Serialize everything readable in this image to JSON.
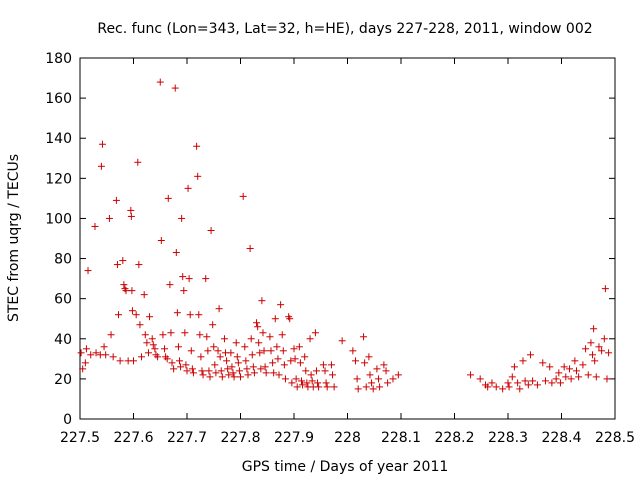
{
  "chart_data": {
    "type": "scatter",
    "title": "Rec. func (Lon=343, Lat=32, h=HE), days 227-228, 2011, window 002",
    "xlabel": "GPS time / Days of year 2011",
    "ylabel": "STEC from uqrg / TECUs",
    "xlim": [
      227.5,
      228.5
    ],
    "ylim": [
      0,
      180
    ],
    "xticks": [
      "227.5",
      "227.6",
      "227.7",
      "227.8",
      "227.9",
      "228",
      "228.1",
      "228.2",
      "228.3",
      "228.4",
      "228.5"
    ],
    "yticks": [
      "0",
      "20",
      "40",
      "60",
      "80",
      "100",
      "120",
      "140",
      "160",
      "180"
    ],
    "marker_color": "#cc0000",
    "grid": false,
    "series": [
      {
        "name": "STEC",
        "points": [
          [
            227.502,
            33
          ],
          [
            227.505,
            25
          ],
          [
            227.51,
            28
          ],
          [
            227.512,
            35
          ],
          [
            227.515,
            74
          ],
          [
            227.52,
            32
          ],
          [
            227.528,
            96
          ],
          [
            227.53,
            33
          ],
          [
            227.538,
            32
          ],
          [
            227.54,
            126
          ],
          [
            227.542,
            137
          ],
          [
            227.545,
            36
          ],
          [
            227.548,
            32
          ],
          [
            227.555,
            100
          ],
          [
            227.558,
            42
          ],
          [
            227.562,
            31
          ],
          [
            227.568,
            109
          ],
          [
            227.57,
            77
          ],
          [
            227.572,
            52
          ],
          [
            227.575,
            29
          ],
          [
            227.58,
            79
          ],
          [
            227.582,
            67
          ],
          [
            227.584,
            65
          ],
          [
            227.586,
            64
          ],
          [
            227.59,
            29
          ],
          [
            227.595,
            104
          ],
          [
            227.596,
            101
          ],
          [
            227.597,
            64
          ],
          [
            227.598,
            54
          ],
          [
            227.6,
            29
          ],
          [
            227.605,
            52
          ],
          [
            227.608,
            128
          ],
          [
            227.61,
            77
          ],
          [
            227.612,
            47
          ],
          [
            227.615,
            31
          ],
          [
            227.62,
            62
          ],
          [
            227.622,
            42
          ],
          [
            227.625,
            38
          ],
          [
            227.628,
            33
          ],
          [
            227.63,
            51
          ],
          [
            227.635,
            40
          ],
          [
            227.637,
            37
          ],
          [
            227.64,
            35
          ],
          [
            227.642,
            32
          ],
          [
            227.645,
            31
          ],
          [
            227.65,
            168
          ],
          [
            227.652,
            89
          ],
          [
            227.655,
            42
          ],
          [
            227.658,
            35
          ],
          [
            227.66,
            31
          ],
          [
            227.663,
            30
          ],
          [
            227.665,
            110
          ],
          [
            227.668,
            67
          ],
          [
            227.67,
            43
          ],
          [
            227.672,
            28
          ],
          [
            227.675,
            25
          ],
          [
            227.678,
            165
          ],
          [
            227.68,
            83
          ],
          [
            227.682,
            53
          ],
          [
            227.684,
            36
          ],
          [
            227.686,
            29
          ],
          [
            227.688,
            26
          ],
          [
            227.69,
            100
          ],
          [
            227.692,
            71
          ],
          [
            227.694,
            64
          ],
          [
            227.696,
            43
          ],
          [
            227.698,
            27
          ],
          [
            227.7,
            24
          ],
          [
            227.702,
            115
          ],
          [
            227.704,
            70
          ],
          [
            227.706,
            52
          ],
          [
            227.708,
            34
          ],
          [
            227.71,
            25
          ],
          [
            227.712,
            23
          ],
          [
            227.718,
            136
          ],
          [
            227.72,
            121
          ],
          [
            227.722,
            52
          ],
          [
            227.724,
            42
          ],
          [
            227.726,
            31
          ],
          [
            227.728,
            24
          ],
          [
            227.73,
            22
          ],
          [
            227.735,
            70
          ],
          [
            227.737,
            41
          ],
          [
            227.739,
            34
          ],
          [
            227.741,
            24
          ],
          [
            227.743,
            21
          ],
          [
            227.745,
            94
          ],
          [
            227.748,
            47
          ],
          [
            227.75,
            36
          ],
          [
            227.752,
            27
          ],
          [
            227.754,
            23
          ],
          [
            227.758,
            34
          ],
          [
            227.76,
            55
          ],
          [
            227.762,
            31
          ],
          [
            227.764,
            24
          ],
          [
            227.766,
            21
          ],
          [
            227.77,
            40
          ],
          [
            227.772,
            33
          ],
          [
            227.774,
            29
          ],
          [
            227.776,
            25
          ],
          [
            227.778,
            22
          ],
          [
            227.782,
            33
          ],
          [
            227.784,
            26
          ],
          [
            227.786,
            23
          ],
          [
            227.788,
            21
          ],
          [
            227.792,
            38
          ],
          [
            227.794,
            31
          ],
          [
            227.796,
            28
          ],
          [
            227.798,
            24
          ],
          [
            227.8,
            21
          ],
          [
            227.805,
            111
          ],
          [
            227.808,
            36
          ],
          [
            227.81,
            29
          ],
          [
            227.812,
            25
          ],
          [
            227.814,
            22
          ],
          [
            227.818,
            85
          ],
          [
            227.82,
            40
          ],
          [
            227.822,
            32
          ],
          [
            227.824,
            26
          ],
          [
            227.826,
            23
          ],
          [
            227.83,
            48
          ],
          [
            227.832,
            46
          ],
          [
            227.834,
            38
          ],
          [
            227.836,
            33
          ],
          [
            227.838,
            25
          ],
          [
            227.84,
            59
          ],
          [
            227.842,
            43
          ],
          [
            227.844,
            34
          ],
          [
            227.846,
            26
          ],
          [
            227.848,
            23
          ],
          [
            227.855,
            41
          ],
          [
            227.857,
            34
          ],
          [
            227.86,
            28
          ],
          [
            227.862,
            23
          ],
          [
            227.865,
            50
          ],
          [
            227.868,
            36
          ],
          [
            227.87,
            30
          ],
          [
            227.872,
            22
          ],
          [
            227.875,
            57
          ],
          [
            227.878,
            42
          ],
          [
            227.88,
            34
          ],
          [
            227.882,
            27
          ],
          [
            227.884,
            20
          ],
          [
            227.89,
            51
          ],
          [
            227.892,
            50
          ],
          [
            227.894,
            29
          ],
          [
            227.896,
            18
          ],
          [
            227.9,
            35
          ],
          [
            227.902,
            30
          ],
          [
            227.904,
            20
          ],
          [
            227.906,
            16
          ],
          [
            227.91,
            36
          ],
          [
            227.912,
            28
          ],
          [
            227.914,
            19
          ],
          [
            227.916,
            17
          ],
          [
            227.92,
            31
          ],
          [
            227.922,
            24
          ],
          [
            227.924,
            18
          ],
          [
            227.926,
            16
          ],
          [
            227.93,
            40
          ],
          [
            227.932,
            22
          ],
          [
            227.934,
            19
          ],
          [
            227.936,
            16
          ],
          [
            227.94,
            43
          ],
          [
            227.942,
            24
          ],
          [
            227.944,
            18
          ],
          [
            227.946,
            16
          ],
          [
            227.955,
            27
          ],
          [
            227.958,
            24
          ],
          [
            227.96,
            18
          ],
          [
            227.962,
            16
          ],
          [
            227.97,
            27
          ],
          [
            227.972,
            22
          ],
          [
            227.975,
            16
          ],
          [
            227.99,
            39
          ],
          [
            228.01,
            34
          ],
          [
            228.015,
            29
          ],
          [
            228.018,
            20
          ],
          [
            228.02,
            15
          ],
          [
            228.03,
            41
          ],
          [
            228.032,
            28
          ],
          [
            228.035,
            16
          ],
          [
            228.04,
            31
          ],
          [
            228.042,
            22
          ],
          [
            228.045,
            18
          ],
          [
            228.048,
            15
          ],
          [
            228.055,
            25
          ],
          [
            228.058,
            20
          ],
          [
            228.06,
            16
          ],
          [
            228.068,
            27
          ],
          [
            228.072,
            24
          ],
          [
            228.075,
            18
          ],
          [
            228.085,
            20
          ],
          [
            228.095,
            22
          ],
          [
            228.23,
            22
          ],
          [
            228.248,
            20
          ],
          [
            228.258,
            17
          ],
          [
            228.262,
            16
          ],
          [
            228.27,
            18
          ],
          [
            228.278,
            16
          ],
          [
            228.29,
            15
          ],
          [
            228.3,
            18
          ],
          [
            228.302,
            16
          ],
          [
            228.308,
            21
          ],
          [
            228.312,
            26
          ],
          [
            228.318,
            18
          ],
          [
            228.322,
            15
          ],
          [
            228.328,
            29
          ],
          [
            228.332,
            19
          ],
          [
            228.338,
            17
          ],
          [
            228.342,
            32
          ],
          [
            228.346,
            19
          ],
          [
            228.355,
            17
          ],
          [
            228.365,
            28
          ],
          [
            228.37,
            19
          ],
          [
            228.378,
            26
          ],
          [
            228.382,
            18
          ],
          [
            228.39,
            20
          ],
          [
            228.395,
            23
          ],
          [
            228.398,
            18
          ],
          [
            228.405,
            26
          ],
          [
            228.408,
            21
          ],
          [
            228.415,
            25
          ],
          [
            228.418,
            20
          ],
          [
            228.425,
            29
          ],
          [
            228.428,
            24
          ],
          [
            228.432,
            21
          ],
          [
            228.44,
            27
          ],
          [
            228.445,
            35
          ],
          [
            228.45,
            22
          ],
          [
            228.455,
            38
          ],
          [
            228.458,
            32
          ],
          [
            228.46,
            45
          ],
          [
            228.462,
            29
          ],
          [
            228.465,
            21
          ],
          [
            228.47,
            36
          ],
          [
            228.475,
            34
          ],
          [
            228.48,
            40
          ],
          [
            228.482,
            65
          ],
          [
            228.485,
            20
          ],
          [
            228.488,
            33
          ]
        ]
      }
    ]
  }
}
